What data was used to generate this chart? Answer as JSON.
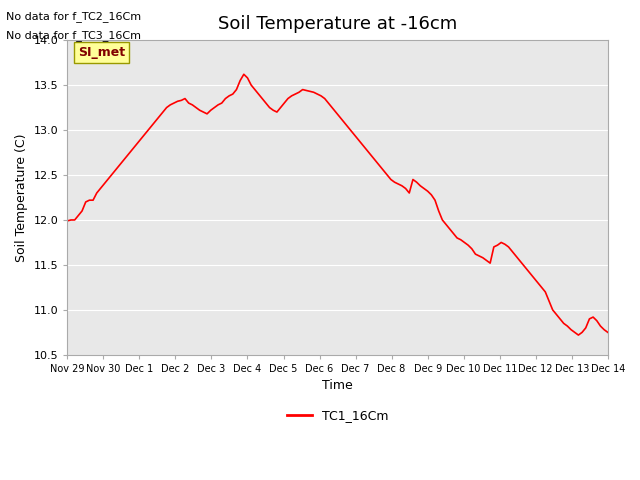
{
  "title": "Soil Temperature at -16cm",
  "xlabel": "Time",
  "ylabel": "Soil Temperature (C)",
  "ylim": [
    10.5,
    14.0
  ],
  "line_color": "#ff0000",
  "background_color": "#ffffff",
  "plot_bg_color": "#e8e8e8",
  "legend_label": "TC1_16Cm",
  "annotation_lines": [
    "No data for f_TC2_16Cm",
    "No data for f_TC3_16Cm"
  ],
  "si_met_label": "SI_met",
  "x_tick_labels": [
    "Nov 29",
    "Nov 30",
    "Dec 1",
    "Dec 2",
    "Dec 3",
    "Dec 4",
    "Dec 5",
    "Dec 6",
    "Dec 7",
    "Dec 8",
    "Dec 9",
    "Dec 10",
    "Dec 11",
    "Dec 12",
    "Dec 13",
    "Dec 14"
  ],
  "data_y": [
    11.99,
    12.0,
    12.0,
    12.05,
    12.1,
    12.2,
    12.22,
    12.22,
    12.3,
    12.35,
    12.4,
    12.45,
    12.5,
    12.55,
    12.6,
    12.65,
    12.7,
    12.75,
    12.8,
    12.85,
    12.9,
    12.95,
    13.0,
    13.05,
    13.1,
    13.15,
    13.2,
    13.25,
    13.28,
    13.3,
    13.32,
    13.33,
    13.35,
    13.3,
    13.28,
    13.25,
    13.22,
    13.2,
    13.18,
    13.22,
    13.25,
    13.28,
    13.3,
    13.35,
    13.38,
    13.4,
    13.45,
    13.55,
    13.62,
    13.58,
    13.5,
    13.45,
    13.4,
    13.35,
    13.3,
    13.25,
    13.22,
    13.2,
    13.25,
    13.3,
    13.35,
    13.38,
    13.4,
    13.42,
    13.45,
    13.44,
    13.43,
    13.42,
    13.4,
    13.38,
    13.35,
    13.3,
    13.25,
    13.2,
    13.15,
    13.1,
    13.05,
    13.0,
    12.95,
    12.9,
    12.85,
    12.8,
    12.75,
    12.7,
    12.65,
    12.6,
    12.55,
    12.5,
    12.45,
    12.42,
    12.4,
    12.38,
    12.35,
    12.3,
    12.45,
    12.42,
    12.38,
    12.35,
    12.32,
    12.28,
    12.22,
    12.1,
    12.0,
    11.95,
    11.9,
    11.85,
    11.8,
    11.78,
    11.75,
    11.72,
    11.68,
    11.62,
    11.6,
    11.58,
    11.55,
    11.52,
    11.7,
    11.72,
    11.75,
    11.73,
    11.7,
    11.65,
    11.6,
    11.55,
    11.5,
    11.45,
    11.4,
    11.35,
    11.3,
    11.25,
    11.2,
    11.1,
    11.0,
    10.95,
    10.9,
    10.85,
    10.82,
    10.78,
    10.75,
    10.72,
    10.75,
    10.8,
    10.9,
    10.92,
    10.88,
    10.82,
    10.78,
    10.75
  ]
}
